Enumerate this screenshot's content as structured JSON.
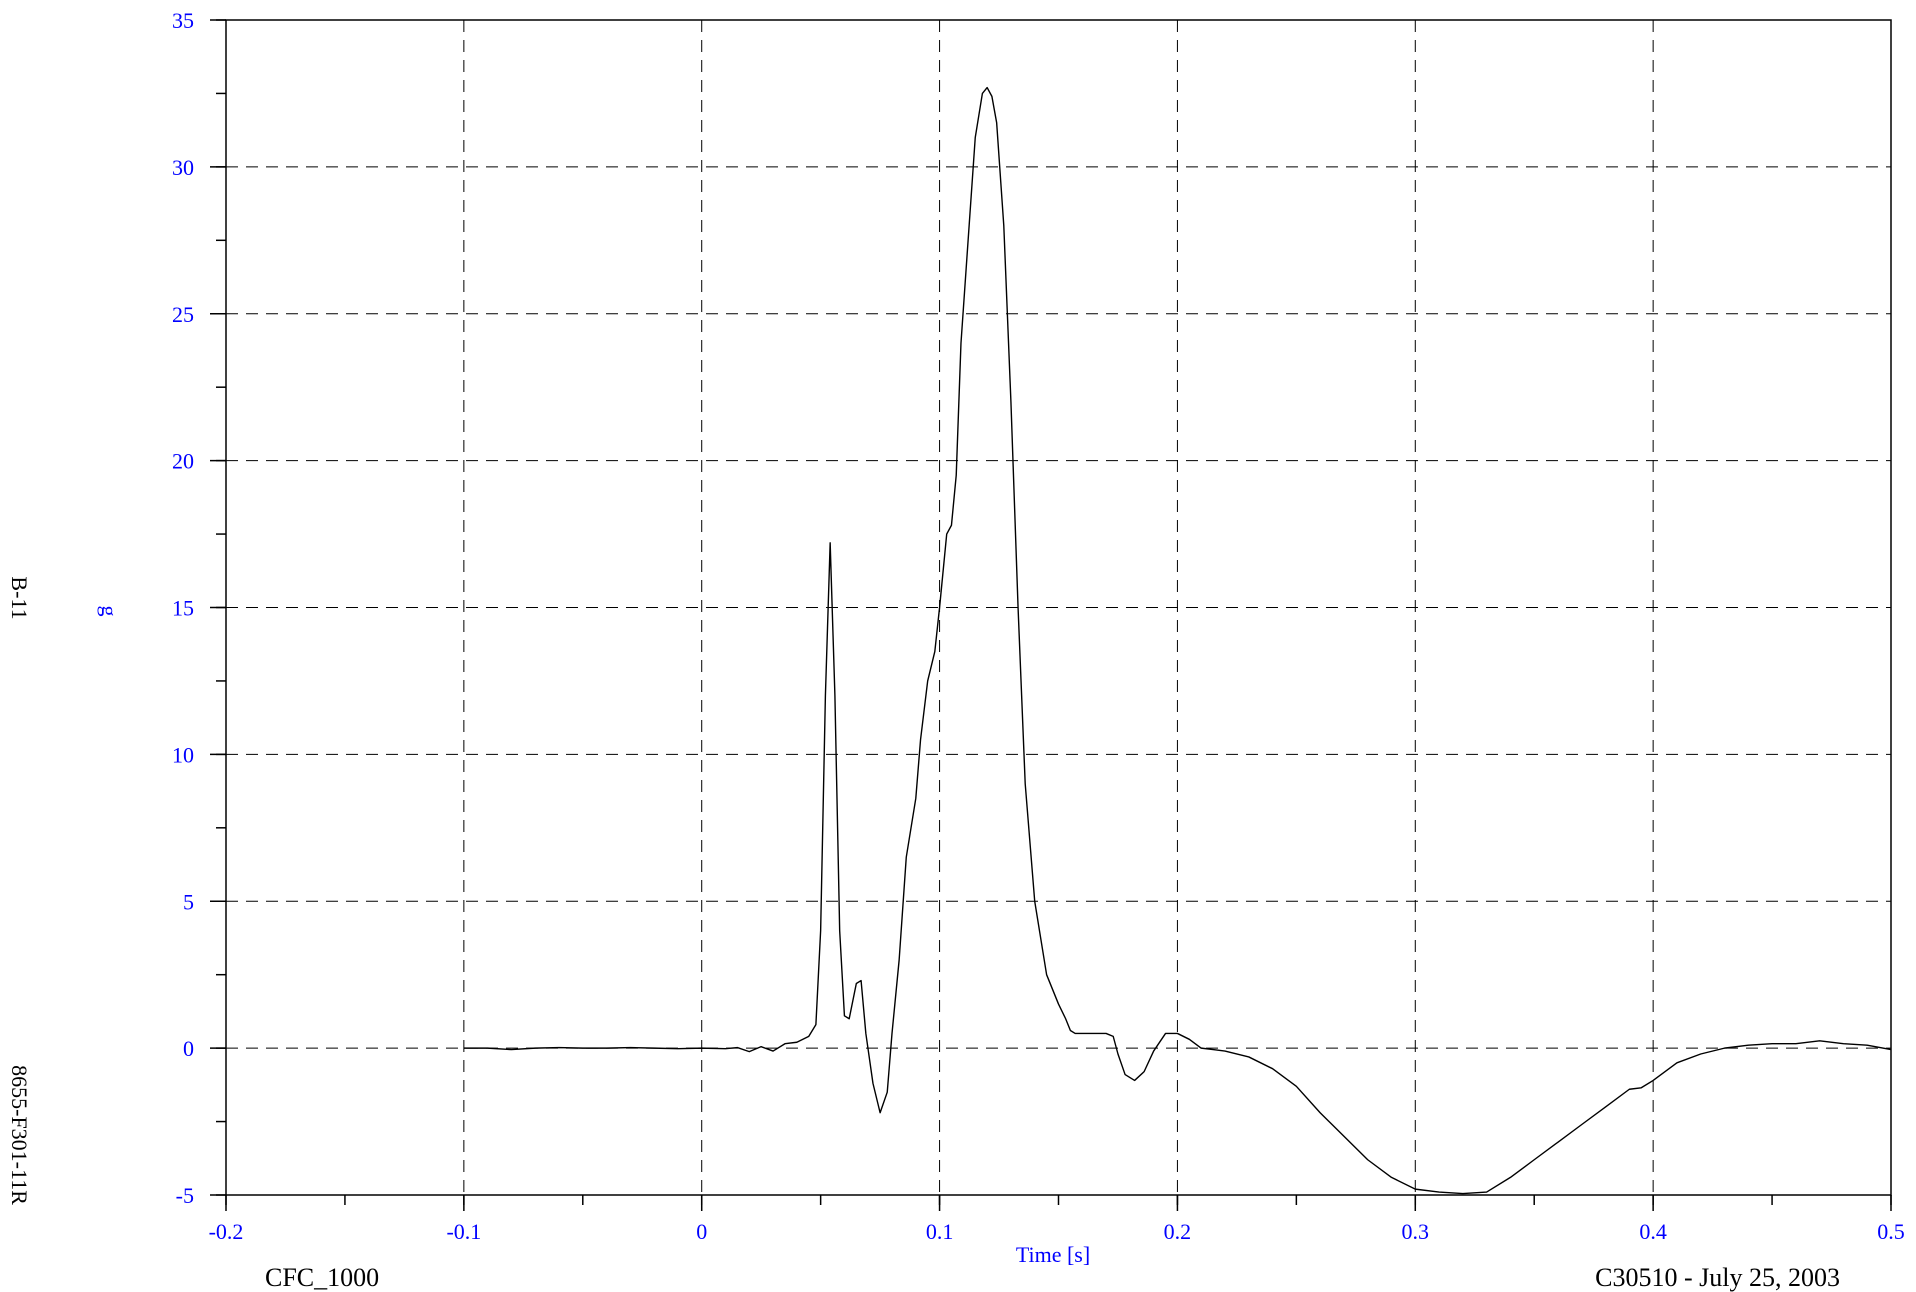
{
  "labels": {
    "channel_code": "B-11",
    "test_id": "8655-F301-11R",
    "filter": "CFC_1000",
    "test_date": "C30510 - July 25, 2003"
  },
  "chart_data": {
    "type": "line",
    "xlabel": "Time [s]",
    "ylabel": "g",
    "xlim": [
      -0.2,
      0.5
    ],
    "ylim": [
      -5,
      35
    ],
    "x_ticks": [
      -0.2,
      -0.1,
      0,
      0.1,
      0.2,
      0.3,
      0.4,
      0.5
    ],
    "x_tick_labels": [
      "-0.2",
      "-0.1",
      "0",
      "0.1",
      "0.2",
      "0.3",
      "0.4",
      "0.5"
    ],
    "y_ticks": [
      -5,
      0,
      5,
      10,
      15,
      20,
      25,
      30,
      35
    ],
    "y_tick_labels": [
      "-5",
      "0",
      "5",
      "10",
      "15",
      "20",
      "25",
      "30",
      "35"
    ],
    "x_minor_step": 0.05,
    "y_minor_step": 2.5,
    "grid": true,
    "colors": {
      "line": "#000000",
      "tick_text": "#0000ff",
      "axis": "#000000"
    },
    "series": [
      {
        "x": [
          -0.1,
          -0.09,
          -0.08,
          -0.07,
          -0.06,
          -0.05,
          -0.04,
          -0.03,
          -0.02,
          -0.01,
          0,
          0.01,
          0.015,
          0.02,
          0.025,
          0.03,
          0.035,
          0.04,
          0.045,
          0.048,
          0.05,
          0.052,
          0.054,
          0.056,
          0.058,
          0.06,
          0.062,
          0.065,
          0.067,
          0.069,
          0.072,
          0.075,
          0.078,
          0.08,
          0.083,
          0.086,
          0.088,
          0.09,
          0.092,
          0.095,
          0.098,
          0.1,
          0.103,
          0.105,
          0.107,
          0.109,
          0.112,
          0.115,
          0.118,
          0.12,
          0.122,
          0.124,
          0.127,
          0.13,
          0.133,
          0.136,
          0.14,
          0.145,
          0.15,
          0.153,
          0.155,
          0.157,
          0.16,
          0.165,
          0.17,
          0.173,
          0.175,
          0.178,
          0.182,
          0.186,
          0.19,
          0.195,
          0.2,
          0.205,
          0.21,
          0.215,
          0.22,
          0.23,
          0.24,
          0.25,
          0.26,
          0.27,
          0.28,
          0.29,
          0.3,
          0.31,
          0.32,
          0.33,
          0.34,
          0.35,
          0.36,
          0.37,
          0.38,
          0.39,
          0.395,
          0.4,
          0.41,
          0.42,
          0.43,
          0.44,
          0.45,
          0.46,
          0.47,
          0.48,
          0.49,
          0.5
        ],
        "y": [
          0,
          0,
          -0.05,
          0,
          0.02,
          0,
          0,
          0.02,
          0,
          -0.02,
          0,
          -0.02,
          0.02,
          -0.12,
          0.05,
          -0.1,
          0.15,
          0.2,
          0.4,
          0.8,
          4,
          12,
          17.2,
          12,
          4,
          1.1,
          1,
          2.2,
          2.3,
          0.5,
          -1.2,
          -2.2,
          -1.5,
          0.5,
          3,
          6.5,
          7.5,
          8.5,
          10.5,
          12.5,
          13.5,
          15,
          17.5,
          17.8,
          19.5,
          24,
          27.5,
          31,
          32.5,
          32.7,
          32.4,
          31.5,
          28,
          22,
          15,
          9,
          5,
          2.5,
          1.5,
          1,
          0.6,
          0.5,
          0.5,
          0.5,
          0.5,
          0.4,
          -0.2,
          -0.9,
          -1.1,
          -0.8,
          -0.1,
          0.5,
          0.5,
          0.3,
          0,
          -0.05,
          -0.1,
          -0.3,
          -0.7,
          -1.3,
          -2.2,
          -3,
          -3.8,
          -4.4,
          -4.8,
          -4.9,
          -4.95,
          -4.9,
          -4.4,
          -3.8,
          -3.2,
          -2.6,
          -2,
          -1.4,
          -1.35,
          -1.1,
          -0.5,
          -0.2,
          0,
          0.1,
          0.15,
          0.15,
          0.25,
          0.15,
          0.1,
          -0.05
        ]
      }
    ]
  }
}
